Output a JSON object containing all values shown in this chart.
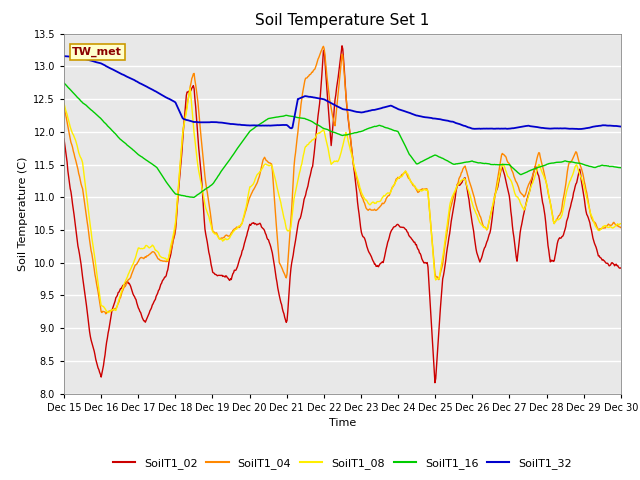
{
  "title": "Soil Temperature Set 1",
  "xlabel": "Time",
  "ylabel": "Soil Temperature (C)",
  "ylim": [
    8.0,
    13.5
  ],
  "xtick_labels": [
    "Dec 15",
    "Dec 16",
    "Dec 17",
    "Dec 18",
    "Dec 19",
    "Dec 20",
    "Dec 21",
    "Dec 22",
    "Dec 23",
    "Dec 24",
    "Dec 25",
    "Dec 26",
    "Dec 27",
    "Dec 28",
    "Dec 29",
    "Dec 30"
  ],
  "series_colors": {
    "SoilT1_02": "#cc0000",
    "SoilT1_04": "#ff8800",
    "SoilT1_08": "#ffee00",
    "SoilT1_16": "#00cc00",
    "SoilT1_32": "#0000cc"
  },
  "legend_label": "TW_met",
  "fig_bg": "#ffffff",
  "plot_bg": "#e8e8e8",
  "grid_color": "#ffffff",
  "title_fontsize": 11,
  "axis_fontsize": 8,
  "tick_fontsize": 7
}
